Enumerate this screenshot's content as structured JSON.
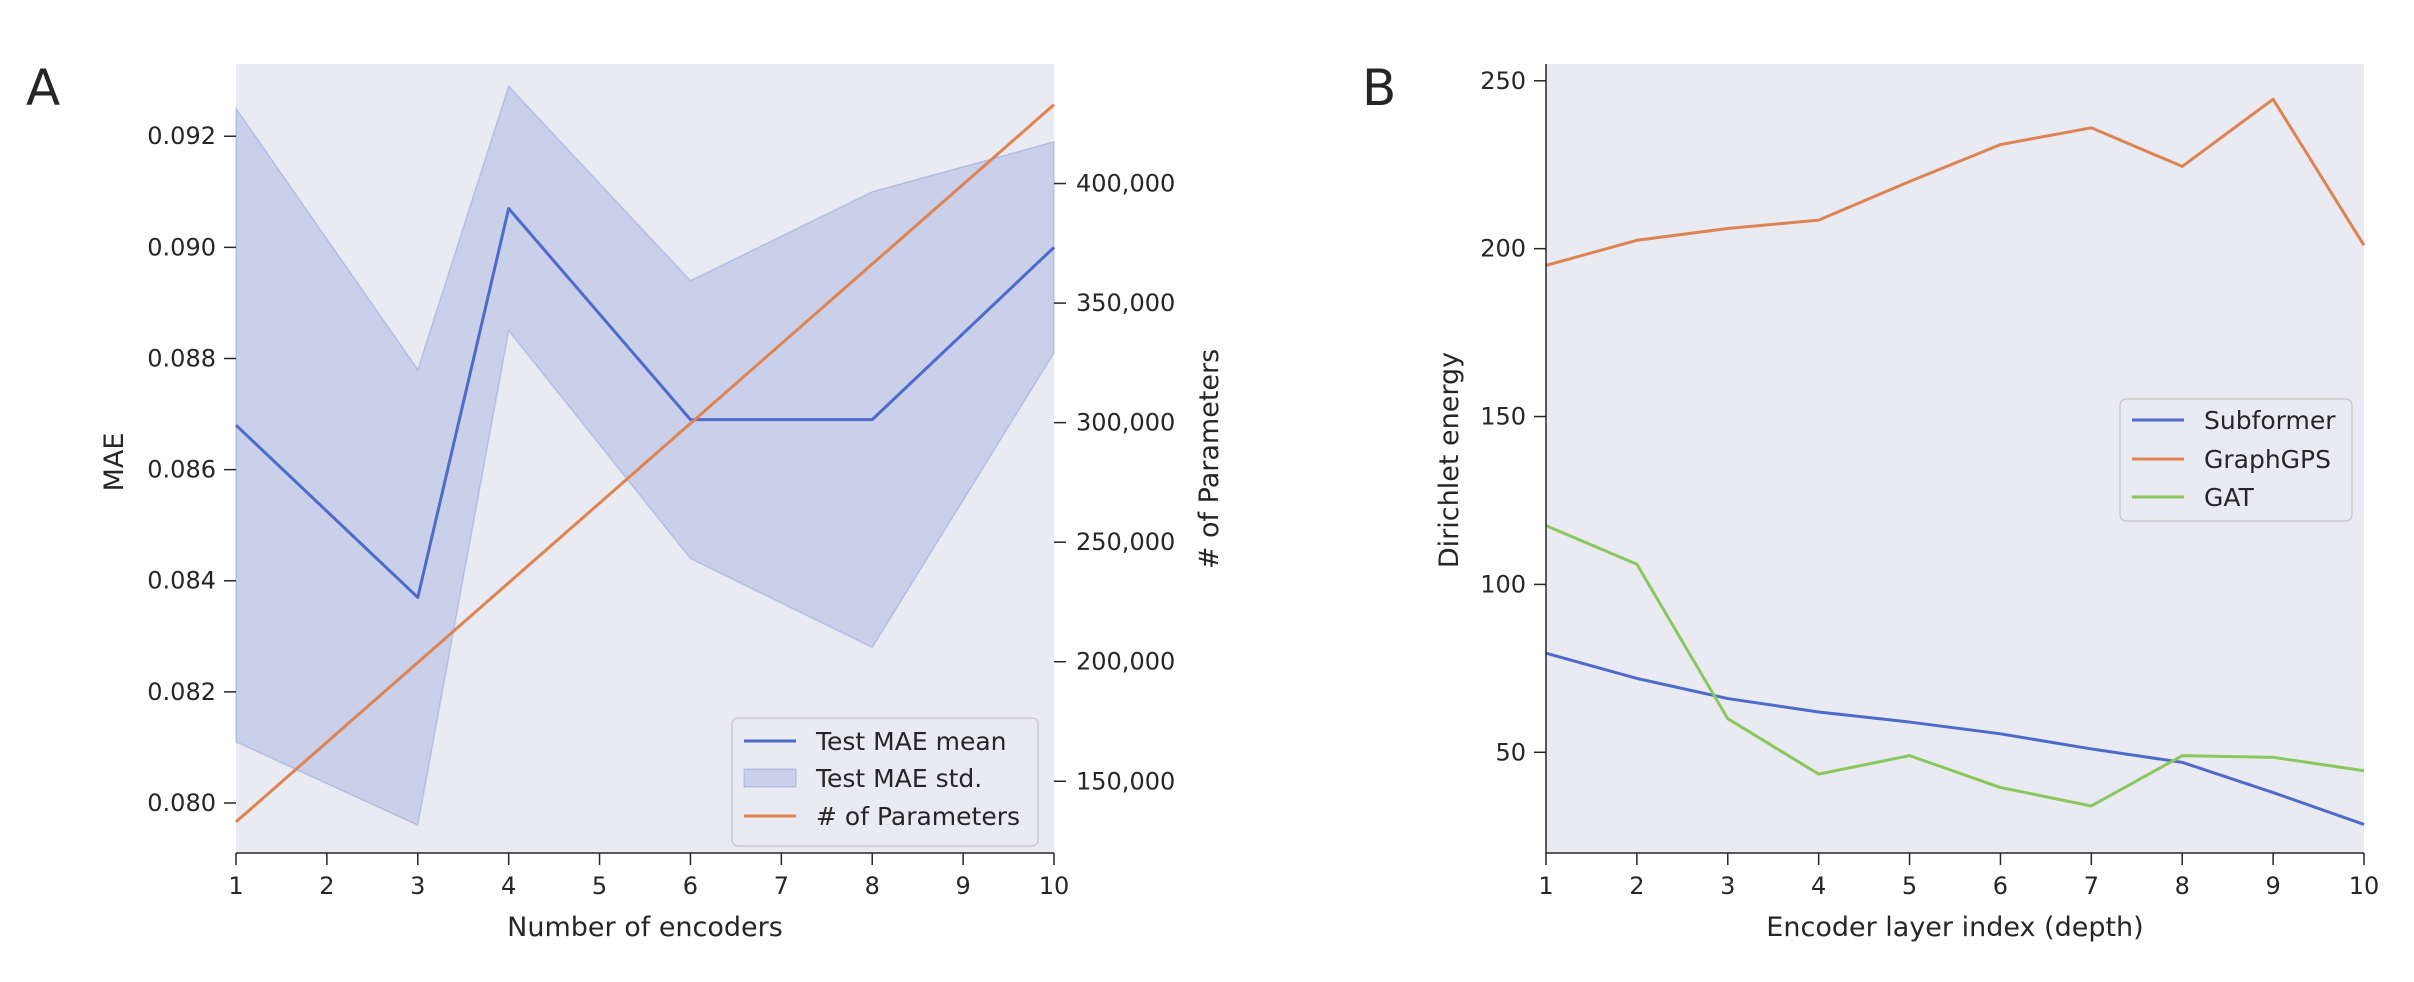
{
  "panels": {
    "a": "A",
    "b": "B"
  },
  "chart_data": [
    {
      "type": "line",
      "panel": "A",
      "xlabel": "Number of encoders",
      "ylabel": "MAE",
      "ylabel_right": "# of Parameters",
      "xlim": [
        1,
        10
      ],
      "ylim": [
        0.0791,
        0.0933
      ],
      "ylim_right": [
        120000,
        450000
      ],
      "x_ticks": [
        1,
        2,
        3,
        4,
        5,
        6,
        7,
        8,
        9,
        10
      ],
      "y_ticks": [
        {
          "value": 0.08,
          "label": "0.080"
        },
        {
          "value": 0.082,
          "label": "0.082"
        },
        {
          "value": 0.084,
          "label": "0.084"
        },
        {
          "value": 0.086,
          "label": "0.086"
        },
        {
          "value": 0.088,
          "label": "0.088"
        },
        {
          "value": 0.09,
          "label": "0.090"
        },
        {
          "value": 0.092,
          "label": "0.092"
        }
      ],
      "y_ticks_right": [
        {
          "value": 150000,
          "label": "150,000"
        },
        {
          "value": 200000,
          "label": "200,000"
        },
        {
          "value": 250000,
          "label": "250,000"
        },
        {
          "value": 300000,
          "label": "300,000"
        },
        {
          "value": 350000,
          "label": "350,000"
        },
        {
          "value": 400000,
          "label": "400,000"
        }
      ],
      "series": [
        {
          "name": "Test MAE mean",
          "kind": "line",
          "axis": "left",
          "color": "#4c6bcb",
          "x": [
            1,
            3,
            4,
            6,
            8,
            10
          ],
          "values": [
            0.0868,
            0.0837,
            0.0907,
            0.0869,
            0.0869,
            0.09
          ]
        },
        {
          "name": "Test MAE std.",
          "kind": "band",
          "axis": "left",
          "color": "#4c6bcb",
          "x": [
            1,
            3,
            4,
            6,
            8,
            10
          ],
          "lower": [
            0.0811,
            0.0796,
            0.0885,
            0.0844,
            0.0828,
            0.0881
          ],
          "upper": [
            0.0925,
            0.0878,
            0.0929,
            0.0894,
            0.091,
            0.0919
          ]
        },
        {
          "name": "# of Parameters",
          "kind": "line",
          "axis": "right",
          "color": "#dd8452",
          "x": [
            1,
            10
          ],
          "values": [
            133000,
            433000
          ]
        }
      ],
      "legend": {
        "position": "lower-right",
        "entries": [
          "Test MAE mean",
          "Test MAE std.",
          "# of Parameters"
        ]
      }
    },
    {
      "type": "line",
      "panel": "B",
      "xlabel": "Encoder layer index (depth)",
      "ylabel": "Dirichlet energy",
      "xlim": [
        1,
        10
      ],
      "ylim": [
        20,
        255
      ],
      "x_ticks": [
        1,
        2,
        3,
        4,
        5,
        6,
        7,
        8,
        9,
        10
      ],
      "y_ticks": [
        {
          "value": 50,
          "label": "50"
        },
        {
          "value": 100,
          "label": "100"
        },
        {
          "value": 150,
          "label": "150"
        },
        {
          "value": 200,
          "label": "200"
        },
        {
          "value": 250,
          "label": "250"
        }
      ],
      "x": [
        1,
        2,
        3,
        4,
        5,
        6,
        7,
        8,
        9,
        10
      ],
      "series": [
        {
          "name": "Subformer",
          "color": "#4c6bcb",
          "values": [
            79.5,
            72,
            66,
            62,
            59,
            55.5,
            51,
            47,
            38,
            28.5
          ]
        },
        {
          "name": "GraphGPS",
          "color": "#dd8452",
          "values": [
            195,
            202.5,
            206,
            208.5,
            220,
            231,
            236,
            224.5,
            244.5,
            201
          ]
        },
        {
          "name": "GAT",
          "color": "#8ac75e",
          "values": [
            117.5,
            106,
            60,
            43.5,
            49,
            39.5,
            34,
            49,
            48.5,
            44.5
          ]
        }
      ],
      "legend": {
        "position": "center-right",
        "entries": [
          "Subformer",
          "GraphGPS",
          "GAT"
        ]
      }
    }
  ]
}
